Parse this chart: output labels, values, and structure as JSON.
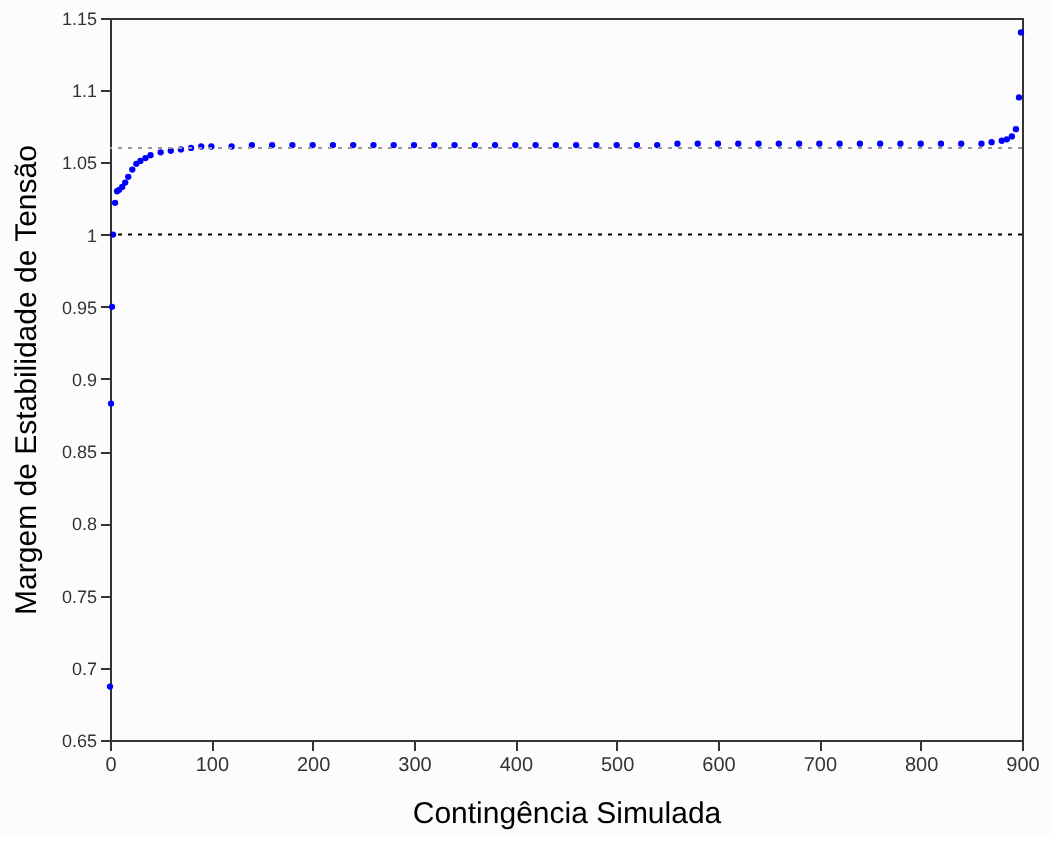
{
  "chart_data": {
    "type": "scatter",
    "xlabel": "Contingência Simulada",
    "ylabel": "Margem de Estabilidade de Tensão",
    "xlim": [
      0,
      900
    ],
    "xticks": [
      0,
      100,
      200,
      300,
      400,
      500,
      600,
      700,
      800,
      900
    ],
    "ylim": [
      0.65,
      1.15
    ],
    "yticks": [
      0.65,
      0.7,
      0.75,
      0.8,
      0.85,
      0.9,
      0.95,
      1,
      1.05,
      1.1,
      1.15
    ],
    "grid": false,
    "marker": "circle",
    "series": [
      {
        "color": "#0000ff",
        "x": [
          0,
          1,
          2,
          3,
          5,
          7,
          9,
          12,
          15,
          18,
          22,
          26,
          30,
          35,
          40,
          50,
          60,
          70,
          80,
          90,
          100,
          120,
          140,
          160,
          180,
          200,
          220,
          240,
          260,
          280,
          300,
          320,
          340,
          360,
          380,
          400,
          420,
          440,
          460,
          480,
          500,
          520,
          540,
          560,
          580,
          600,
          620,
          640,
          660,
          680,
          700,
          720,
          740,
          760,
          780,
          800,
          820,
          840,
          860,
          870,
          880,
          885,
          890,
          894,
          897,
          899
        ],
        "values": [
          0.687,
          0.883,
          0.95,
          1.0,
          1.022,
          1.03,
          1.031,
          1.033,
          1.036,
          1.04,
          1.045,
          1.049,
          1.051,
          1.053,
          1.055,
          1.057,
          1.058,
          1.059,
          1.06,
          1.061,
          1.061,
          1.061,
          1.062,
          1.062,
          1.062,
          1.062,
          1.062,
          1.062,
          1.062,
          1.062,
          1.062,
          1.062,
          1.062,
          1.062,
          1.062,
          1.062,
          1.062,
          1.062,
          1.062,
          1.062,
          1.062,
          1.062,
          1.062,
          1.063,
          1.063,
          1.063,
          1.063,
          1.063,
          1.063,
          1.063,
          1.063,
          1.063,
          1.063,
          1.063,
          1.063,
          1.063,
          1.063,
          1.063,
          1.063,
          1.064,
          1.065,
          1.066,
          1.068,
          1.073,
          1.095,
          1.14
        ]
      }
    ],
    "ref_lines": [
      {
        "axis": "y",
        "value": 1,
        "color": "#000000",
        "line_style": "dotted"
      },
      {
        "axis": "y",
        "value": 1.06,
        "color": "#999999",
        "line_style": "dotted"
      }
    ]
  }
}
